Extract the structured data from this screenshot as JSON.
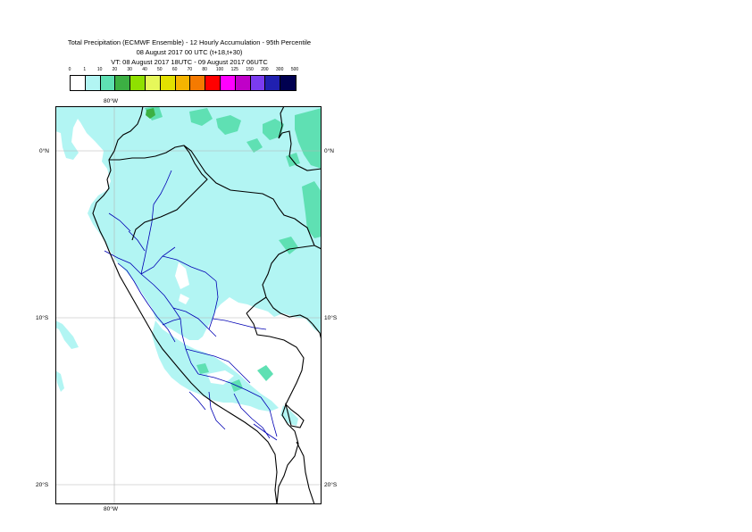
{
  "title": {
    "line1": "Total Precipitation (ECMWF Ensemble) - 12 Hourly Accumulation - 95th Percentile",
    "line2": "08 August 2017 00 UTC (t+18,t+30)",
    "line3": "VT: 08 August 2017 18UTC - 09 August 2017 06UTC"
  },
  "legend": {
    "ticks": [
      "0",
      "1",
      "10",
      "20",
      "30",
      "40",
      "50",
      "60",
      "70",
      "80",
      "100",
      "125",
      "150",
      "200",
      "300",
      "500"
    ],
    "colors": [
      "#ffffff",
      "#b2f5f3",
      "#5fe0b3",
      "#3cb043",
      "#8fe000",
      "#e6f75a",
      "#e2e000",
      "#f5b400",
      "#f57a00",
      "#ff0000",
      "#ff00ff",
      "#c000c8",
      "#7b3cf0",
      "#2020b0",
      "#000050"
    ]
  },
  "map": {
    "lon_labels": [
      "80°W",
      "80°W"
    ],
    "lat_labels_left": [
      "0°N",
      "10°S",
      "20°S"
    ],
    "lat_labels_right": [
      "0°N",
      "10°S",
      "20°S"
    ],
    "colors": {
      "light_cyan": "#b2f5f3",
      "teal": "#5fe0b3",
      "green": "#3cb043",
      "country_border": "#000000",
      "region_border": "#0000b4",
      "gridline": "#b4b4b4",
      "frame": "#000000"
    }
  }
}
